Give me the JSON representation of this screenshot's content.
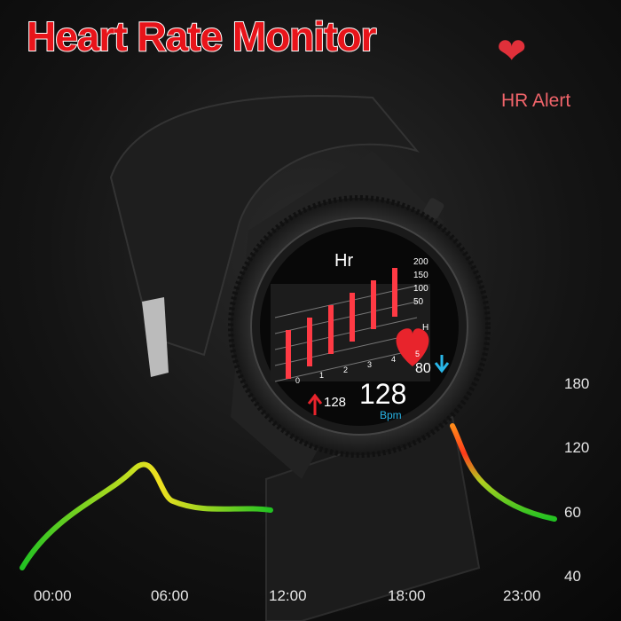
{
  "title": "Heart Rate Monitor",
  "alert": {
    "icon": "heart-icon",
    "label": "HR Alert"
  },
  "watch": {
    "label": "Hr",
    "y_ticks": [
      "200",
      "150",
      "100",
      "50"
    ],
    "x_ticks": [
      "0",
      "1",
      "2",
      "3",
      "4",
      "5"
    ],
    "x_unit": "H",
    "min_value": "80",
    "max_value": "128",
    "current_value": "128",
    "current_unit": "Bpm"
  },
  "axis": {
    "y_labels": [
      "180",
      "120",
      "60",
      "40"
    ],
    "x_labels": [
      "00:00",
      "06:00",
      "12:00",
      "18:00",
      "23:00"
    ]
  },
  "colors": {
    "title": "#e8141a",
    "heart": "#e0303a",
    "low": "#22c222",
    "mid": "#f0e020",
    "high": "#ff3a1a",
    "down_arrow": "#29b6e8"
  }
}
